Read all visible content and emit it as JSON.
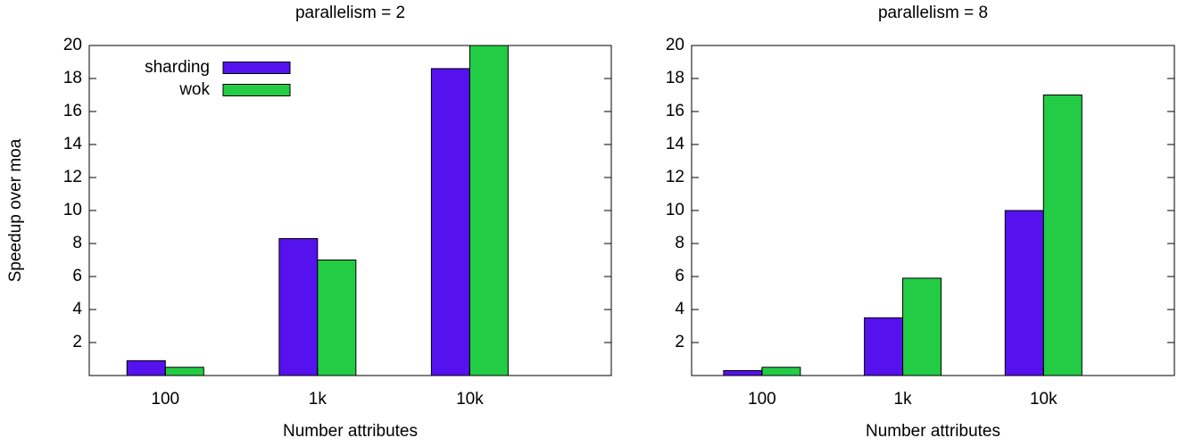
{
  "chart_data": [
    {
      "type": "bar",
      "title": "parallelism = 2",
      "xlabel": "Number attributes",
      "ylabel": "Speedup over moa",
      "categories": [
        "100",
        "1k",
        "10k"
      ],
      "series": [
        {
          "name": "sharding",
          "color": "#5511ee",
          "values": [
            0.9,
            8.3,
            18.6
          ]
        },
        {
          "name": "wok",
          "color": "#22cc44",
          "values": [
            0.5,
            7.0,
            20
          ]
        }
      ],
      "ylim": [
        0,
        20
      ],
      "yticks": [
        2,
        4,
        6,
        8,
        10,
        12,
        14,
        16,
        18,
        20
      ],
      "legend": "top-left"
    },
    {
      "type": "bar",
      "title": "parallelism = 8",
      "xlabel": "Number attributes",
      "categories": [
        "100",
        "1k",
        "10k"
      ],
      "series": [
        {
          "color": "#5511ee",
          "values": [
            0.3,
            3.5,
            10.0
          ]
        },
        {
          "color": "#22cc44",
          "values": [
            0.5,
            5.9,
            17.0
          ]
        }
      ],
      "ylim": [
        0,
        20
      ],
      "yticks": [
        2,
        4,
        6,
        8,
        10,
        12,
        14,
        16,
        18,
        20
      ]
    }
  ]
}
